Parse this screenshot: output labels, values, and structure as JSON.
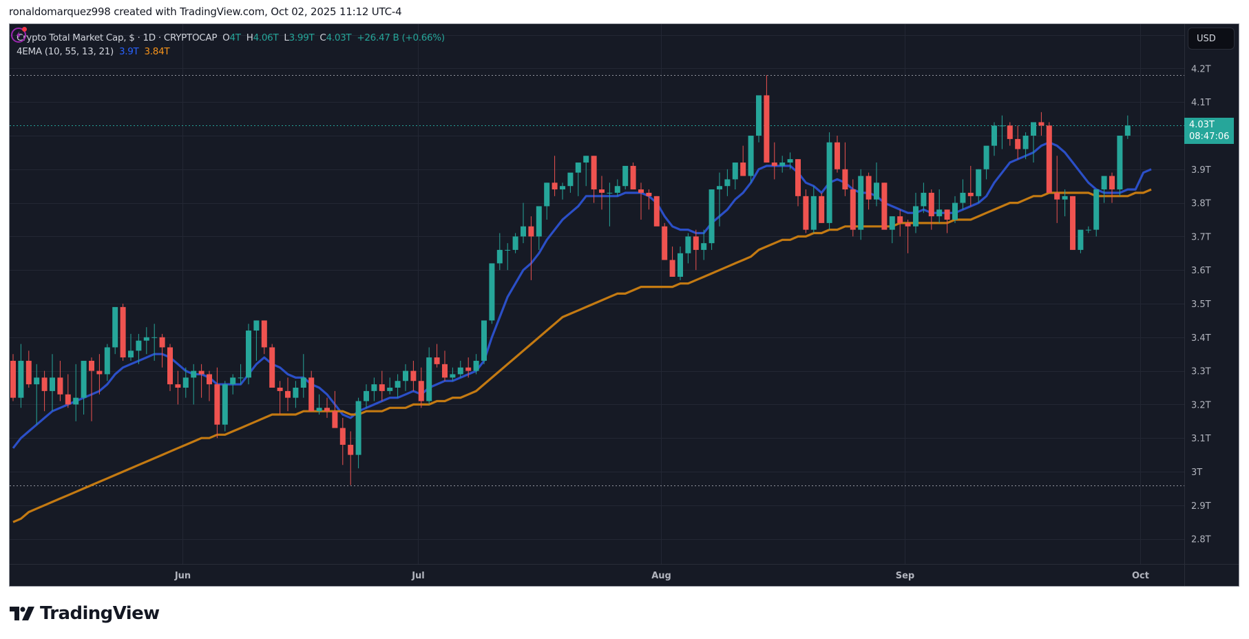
{
  "header": {
    "credit": "ronaldomarquez998 created with TradingView.com, Oct 02, 2025 11:12 UTC-4"
  },
  "legend": {
    "symbol": "Crypto Total Market Cap, $ · 1D · CRYPTOCAP",
    "o_label": "O",
    "o_value": "4T",
    "h_label": "H",
    "h_value": "4.06T",
    "l_label": "L",
    "l_value": "3.99T",
    "c_label": "C",
    "c_value": "4.03T",
    "change": "+26.47 B (+0.66%)",
    "indicator": "4EMA (10, 55, 13, 21)",
    "ema_fast_value": "3.9T",
    "ema_slow_value": "3.84T"
  },
  "price_axis": {
    "currency": "USD",
    "last_price": "4.03T",
    "countdown": "08:47:06"
  },
  "brand": {
    "name": "TradingView"
  },
  "colors": {
    "background": "#161a25",
    "grid": "#232734",
    "up": "#26a69a",
    "down": "#ef5350",
    "ema_fast": "#2b4fc7",
    "ema_slow": "#c47a12",
    "axis_text": "#b2b5be"
  },
  "chart_data": {
    "type": "candlestick",
    "title": "Crypto Total Market Cap, $ · 1D · CRYPTOCAP",
    "xlabel": "",
    "ylabel": "USD",
    "ylim": [
      2.72,
      4.32
    ],
    "grid": true,
    "y_ticks": [
      "4.2T",
      "4.1T",
      "3.9T",
      "3.8T",
      "3.7T",
      "3.6T",
      "3.5T",
      "3.4T",
      "3.3T",
      "3.2T",
      "3.1T",
      "3T",
      "2.9T",
      "2.8T"
    ],
    "y_tick_values": [
      4.2,
      4.1,
      3.9,
      3.8,
      3.7,
      3.6,
      3.5,
      3.4,
      3.3,
      3.2,
      3.1,
      3.0,
      2.9,
      2.8
    ],
    "x_ticks": [
      {
        "label": "Jun",
        "index": 22
      },
      {
        "label": "Jul",
        "index": 52
      },
      {
        "label": "Aug",
        "index": 83
      },
      {
        "label": "Sep",
        "index": 114
      },
      {
        "label": "Oct",
        "index": 144
      }
    ],
    "start_date": "2025-05-10",
    "dotted_levels": [
      4.18,
      2.96
    ],
    "last_price_level": 4.03,
    "ohlc": [
      [
        3.33,
        3.35,
        3.21,
        3.22
      ],
      [
        3.22,
        3.38,
        3.19,
        3.33
      ],
      [
        3.33,
        3.36,
        3.25,
        3.26
      ],
      [
        3.26,
        3.32,
        3.14,
        3.28
      ],
      [
        3.28,
        3.3,
        3.18,
        3.24
      ],
      [
        3.24,
        3.35,
        3.18,
        3.28
      ],
      [
        3.28,
        3.33,
        3.21,
        3.23
      ],
      [
        3.23,
        3.29,
        3.19,
        3.2
      ],
      [
        3.2,
        3.32,
        3.15,
        3.22
      ],
      [
        3.22,
        3.31,
        3.17,
        3.33
      ],
      [
        3.33,
        3.34,
        3.15,
        3.3
      ],
      [
        3.3,
        3.35,
        3.23,
        3.29
      ],
      [
        3.29,
        3.38,
        3.27,
        3.37
      ],
      [
        3.37,
        3.47,
        3.35,
        3.49
      ],
      [
        3.49,
        3.5,
        3.33,
        3.34
      ],
      [
        3.34,
        3.41,
        3.33,
        3.36
      ],
      [
        3.36,
        3.41,
        3.32,
        3.39
      ],
      [
        3.39,
        3.43,
        3.35,
        3.4
      ],
      [
        3.4,
        3.44,
        3.33,
        3.4
      ],
      [
        3.4,
        3.41,
        3.31,
        3.37
      ],
      [
        3.37,
        3.38,
        3.24,
        3.26
      ],
      [
        3.26,
        3.3,
        3.2,
        3.25
      ],
      [
        3.25,
        3.31,
        3.22,
        3.28
      ],
      [
        3.28,
        3.32,
        3.2,
        3.3
      ],
      [
        3.3,
        3.32,
        3.22,
        3.29
      ],
      [
        3.29,
        3.3,
        3.21,
        3.26
      ],
      [
        3.26,
        3.31,
        3.1,
        3.14
      ],
      [
        3.14,
        3.27,
        3.12,
        3.26
      ],
      [
        3.26,
        3.29,
        3.23,
        3.28
      ],
      [
        3.28,
        3.32,
        3.26,
        3.28
      ],
      [
        3.28,
        3.44,
        3.26,
        3.42
      ],
      [
        3.42,
        3.45,
        3.33,
        3.45
      ],
      [
        3.45,
        3.45,
        3.35,
        3.37
      ],
      [
        3.37,
        3.38,
        3.26,
        3.25
      ],
      [
        3.25,
        3.27,
        3.17,
        3.24
      ],
      [
        3.24,
        3.28,
        3.18,
        3.22
      ],
      [
        3.22,
        3.27,
        3.19,
        3.25
      ],
      [
        3.25,
        3.35,
        3.22,
        3.28
      ],
      [
        3.28,
        3.3,
        3.2,
        3.18
      ],
      [
        3.18,
        3.23,
        3.17,
        3.19
      ],
      [
        3.19,
        3.22,
        3.16,
        3.18
      ],
      [
        3.18,
        3.24,
        3.15,
        3.13
      ],
      [
        3.13,
        3.16,
        3.02,
        3.08
      ],
      [
        3.08,
        3.12,
        2.96,
        3.05
      ],
      [
        3.05,
        3.22,
        3.01,
        3.21
      ],
      [
        3.21,
        3.26,
        3.19,
        3.24
      ],
      [
        3.24,
        3.28,
        3.21,
        3.26
      ],
      [
        3.26,
        3.3,
        3.21,
        3.24
      ],
      [
        3.24,
        3.28,
        3.23,
        3.25
      ],
      [
        3.25,
        3.29,
        3.22,
        3.27
      ],
      [
        3.27,
        3.32,
        3.24,
        3.3
      ],
      [
        3.3,
        3.33,
        3.24,
        3.27
      ],
      [
        3.27,
        3.31,
        3.19,
        3.21
      ],
      [
        3.21,
        3.37,
        3.2,
        3.34
      ],
      [
        3.34,
        3.38,
        3.31,
        3.32
      ],
      [
        3.32,
        3.36,
        3.27,
        3.28
      ],
      [
        3.28,
        3.31,
        3.27,
        3.29
      ],
      [
        3.29,
        3.33,
        3.28,
        3.31
      ],
      [
        3.31,
        3.34,
        3.28,
        3.3
      ],
      [
        3.3,
        3.35,
        3.29,
        3.33
      ],
      [
        3.33,
        3.43,
        3.32,
        3.45
      ],
      [
        3.45,
        3.61,
        3.44,
        3.62
      ],
      [
        3.62,
        3.71,
        3.6,
        3.66
      ],
      [
        3.66,
        3.68,
        3.6,
        3.66
      ],
      [
        3.66,
        3.71,
        3.65,
        3.7
      ],
      [
        3.7,
        3.8,
        3.68,
        3.73
      ],
      [
        3.73,
        3.76,
        3.57,
        3.7
      ],
      [
        3.7,
        3.78,
        3.66,
        3.79
      ],
      [
        3.79,
        3.86,
        3.75,
        3.86
      ],
      [
        3.86,
        3.94,
        3.82,
        3.84
      ],
      [
        3.84,
        3.86,
        3.81,
        3.85
      ],
      [
        3.85,
        3.88,
        3.83,
        3.89
      ],
      [
        3.89,
        3.91,
        3.82,
        3.92
      ],
      [
        3.92,
        3.94,
        3.85,
        3.94
      ],
      [
        3.94,
        3.94,
        3.8,
        3.84
      ],
      [
        3.84,
        3.88,
        3.78,
        3.83
      ],
      [
        3.83,
        3.86,
        3.73,
        3.83
      ],
      [
        3.83,
        3.87,
        3.82,
        3.85
      ],
      [
        3.85,
        3.89,
        3.84,
        3.91
      ],
      [
        3.91,
        3.92,
        3.84,
        3.84
      ],
      [
        3.84,
        3.86,
        3.75,
        3.83
      ],
      [
        3.83,
        3.84,
        3.78,
        3.82
      ],
      [
        3.82,
        3.82,
        3.74,
        3.73
      ],
      [
        3.73,
        3.74,
        3.64,
        3.63
      ],
      [
        3.63,
        3.67,
        3.58,
        3.58
      ],
      [
        3.58,
        3.67,
        3.57,
        3.65
      ],
      [
        3.65,
        3.71,
        3.62,
        3.7
      ],
      [
        3.7,
        3.72,
        3.6,
        3.66
      ],
      [
        3.66,
        3.72,
        3.63,
        3.68
      ],
      [
        3.68,
        3.84,
        3.66,
        3.84
      ],
      [
        3.84,
        3.89,
        3.73,
        3.85
      ],
      [
        3.85,
        3.9,
        3.82,
        3.87
      ],
      [
        3.87,
        3.92,
        3.84,
        3.92
      ],
      [
        3.92,
        3.97,
        3.88,
        3.88
      ],
      [
        3.88,
        4.0,
        3.86,
        4.0
      ],
      [
        4.0,
        4.1,
        3.98,
        4.12
      ],
      [
        4.12,
        4.18,
        3.92,
        3.92
      ],
      [
        3.92,
        3.98,
        3.87,
        3.91
      ],
      [
        3.91,
        3.94,
        3.89,
        3.92
      ],
      [
        3.92,
        3.95,
        3.9,
        3.93
      ],
      [
        3.93,
        3.93,
        3.79,
        3.82
      ],
      [
        3.82,
        3.84,
        3.71,
        3.72
      ],
      [
        3.72,
        3.85,
        3.71,
        3.82
      ],
      [
        3.82,
        3.83,
        3.74,
        3.74
      ],
      [
        3.74,
        4.01,
        3.72,
        3.98
      ],
      [
        3.98,
        4.0,
        3.89,
        3.9
      ],
      [
        3.9,
        3.98,
        3.82,
        3.84
      ],
      [
        3.84,
        3.87,
        3.7,
        3.72
      ],
      [
        3.72,
        3.9,
        3.69,
        3.88
      ],
      [
        3.88,
        3.89,
        3.78,
        3.81
      ],
      [
        3.81,
        3.92,
        3.79,
        3.86
      ],
      [
        3.86,
        3.86,
        3.73,
        3.72
      ],
      [
        3.72,
        3.76,
        3.68,
        3.76
      ],
      [
        3.76,
        3.78,
        3.7,
        3.74
      ],
      [
        3.74,
        3.75,
        3.65,
        3.73
      ],
      [
        3.73,
        3.83,
        3.71,
        3.79
      ],
      [
        3.79,
        3.86,
        3.77,
        3.83
      ],
      [
        3.83,
        3.84,
        3.72,
        3.76
      ],
      [
        3.76,
        3.84,
        3.74,
        3.78
      ],
      [
        3.78,
        3.78,
        3.71,
        3.75
      ],
      [
        3.75,
        3.82,
        3.74,
        3.8
      ],
      [
        3.8,
        3.87,
        3.78,
        3.83
      ],
      [
        3.83,
        3.91,
        3.79,
        3.82
      ],
      [
        3.82,
        3.9,
        3.8,
        3.9
      ],
      [
        3.9,
        3.94,
        3.87,
        3.97
      ],
      [
        3.97,
        4.04,
        3.94,
        4.03
      ],
      [
        4.03,
        4.06,
        3.96,
        4.03
      ],
      [
        4.03,
        4.04,
        3.97,
        3.99
      ],
      [
        3.99,
        4.03,
        3.93,
        3.96
      ],
      [
        3.96,
        4.01,
        3.93,
        4.0
      ],
      [
        4.0,
        4.04,
        3.92,
        4.04
      ],
      [
        4.04,
        4.07,
        4.0,
        4.03
      ],
      [
        4.03,
        4.04,
        3.83,
        3.83
      ],
      [
        3.83,
        3.94,
        3.74,
        3.81
      ],
      [
        3.81,
        3.84,
        3.76,
        3.82
      ],
      [
        3.82,
        3.82,
        3.66,
        3.66
      ],
      [
        3.66,
        3.71,
        3.65,
        3.72
      ],
      [
        3.72,
        3.73,
        3.71,
        3.72
      ],
      [
        3.72,
        3.83,
        3.7,
        3.84
      ],
      [
        3.84,
        3.88,
        3.8,
        3.88
      ],
      [
        3.88,
        3.89,
        3.8,
        3.84
      ],
      [
        3.84,
        3.99,
        3.82,
        4.0
      ],
      [
        4.0,
        4.06,
        3.99,
        4.03
      ]
    ],
    "series": [
      {
        "name": "EMA fast",
        "color": "#2b4fc7",
        "last_value": 3.9,
        "values": [
          3.07,
          3.1,
          3.12,
          3.14,
          3.16,
          3.18,
          3.19,
          3.2,
          3.21,
          3.22,
          3.23,
          3.24,
          3.26,
          3.29,
          3.31,
          3.32,
          3.33,
          3.34,
          3.35,
          3.35,
          3.34,
          3.32,
          3.3,
          3.29,
          3.29,
          3.28,
          3.26,
          3.26,
          3.26,
          3.26,
          3.29,
          3.32,
          3.34,
          3.32,
          3.31,
          3.29,
          3.28,
          3.28,
          3.26,
          3.25,
          3.23,
          3.2,
          3.17,
          3.16,
          3.18,
          3.19,
          3.2,
          3.21,
          3.22,
          3.22,
          3.23,
          3.24,
          3.23,
          3.25,
          3.26,
          3.27,
          3.27,
          3.28,
          3.29,
          3.3,
          3.33,
          3.4,
          3.46,
          3.52,
          3.56,
          3.6,
          3.62,
          3.65,
          3.69,
          3.72,
          3.75,
          3.77,
          3.79,
          3.82,
          3.82,
          3.82,
          3.82,
          3.82,
          3.83,
          3.83,
          3.83,
          3.82,
          3.8,
          3.76,
          3.73,
          3.72,
          3.72,
          3.71,
          3.71,
          3.74,
          3.76,
          3.78,
          3.81,
          3.83,
          3.86,
          3.9,
          3.91,
          3.91,
          3.91,
          3.91,
          3.89,
          3.86,
          3.85,
          3.83,
          3.86,
          3.87,
          3.86,
          3.84,
          3.83,
          3.83,
          3.82,
          3.8,
          3.79,
          3.78,
          3.77,
          3.77,
          3.78,
          3.77,
          3.77,
          3.77,
          3.77,
          3.78,
          3.79,
          3.8,
          3.82,
          3.86,
          3.89,
          3.92,
          3.93,
          3.94,
          3.95,
          3.97,
          3.98,
          3.97,
          3.95,
          3.92,
          3.89,
          3.86,
          3.84,
          3.83,
          3.83,
          3.83,
          3.84,
          3.84,
          3.89,
          3.9
        ]
      },
      {
        "name": "EMA slow",
        "color": "#c47a12",
        "last_value": 3.84,
        "values": [
          2.85,
          2.86,
          2.88,
          2.89,
          2.9,
          2.91,
          2.92,
          2.93,
          2.94,
          2.95,
          2.96,
          2.97,
          2.98,
          2.99,
          3.0,
          3.01,
          3.02,
          3.03,
          3.04,
          3.05,
          3.06,
          3.07,
          3.08,
          3.09,
          3.1,
          3.1,
          3.11,
          3.11,
          3.12,
          3.13,
          3.14,
          3.15,
          3.16,
          3.17,
          3.17,
          3.17,
          3.17,
          3.18,
          3.18,
          3.18,
          3.18,
          3.18,
          3.18,
          3.17,
          3.17,
          3.18,
          3.18,
          3.18,
          3.19,
          3.19,
          3.19,
          3.2,
          3.2,
          3.2,
          3.21,
          3.21,
          3.22,
          3.22,
          3.23,
          3.24,
          3.26,
          3.28,
          3.3,
          3.32,
          3.34,
          3.36,
          3.38,
          3.4,
          3.42,
          3.44,
          3.46,
          3.47,
          3.48,
          3.49,
          3.5,
          3.51,
          3.52,
          3.53,
          3.53,
          3.54,
          3.55,
          3.55,
          3.55,
          3.55,
          3.55,
          3.56,
          3.56,
          3.57,
          3.58,
          3.59,
          3.6,
          3.61,
          3.62,
          3.63,
          3.64,
          3.66,
          3.67,
          3.68,
          3.69,
          3.69,
          3.7,
          3.7,
          3.71,
          3.71,
          3.72,
          3.72,
          3.73,
          3.73,
          3.73,
          3.73,
          3.73,
          3.73,
          3.73,
          3.74,
          3.74,
          3.74,
          3.74,
          3.74,
          3.74,
          3.74,
          3.75,
          3.75,
          3.75,
          3.76,
          3.77,
          3.78,
          3.79,
          3.8,
          3.8,
          3.81,
          3.82,
          3.82,
          3.83,
          3.83,
          3.83,
          3.83,
          3.83,
          3.83,
          3.82,
          3.82,
          3.82,
          3.82,
          3.82,
          3.83,
          3.83,
          3.84
        ]
      }
    ]
  }
}
